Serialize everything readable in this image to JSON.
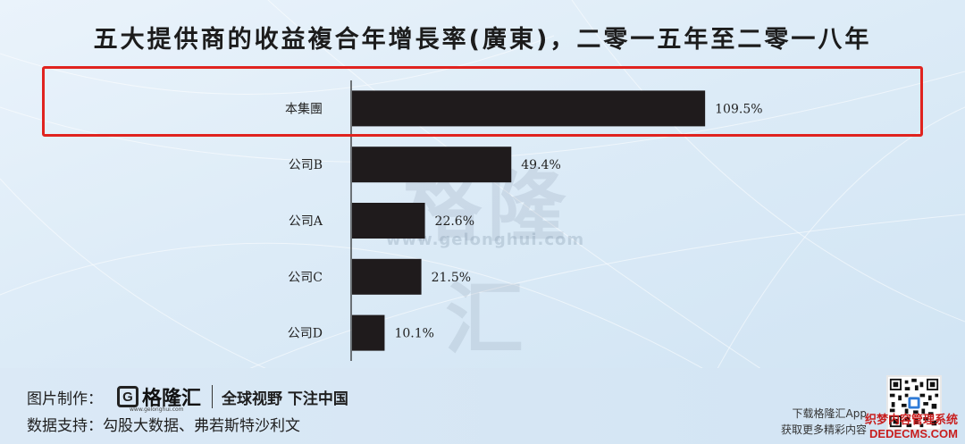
{
  "chart_data": {
    "type": "bar",
    "orientation": "horizontal",
    "title": "五大提供商的收益複合年增長率(廣東)，二零一五年至二零一八年",
    "categories": [
      "本集團",
      "公司B",
      "公司A",
      "公司C",
      "公司D"
    ],
    "values": [
      109.5,
      49.4,
      22.6,
      21.5,
      10.1
    ],
    "value_labels": [
      "109.5%",
      "49.4%",
      "22.6%",
      "21.5%",
      "10.1%"
    ],
    "xlim": [
      0,
      115
    ],
    "highlighted_category": "本集團",
    "bar_color": "#1f1b1c",
    "highlight_color": "#e0231f"
  },
  "watermark": {
    "text": "格隆汇",
    "url": "www.gelonghui.com"
  },
  "footer": {
    "made_by_label": "图片制作：",
    "brand_name": "格隆汇",
    "brand_letter": "G",
    "brand_url": "www.gelonghui.com",
    "slogan": "全球视野 下注中国",
    "data_support_label": "数据支持：",
    "data_support_value": "勾股大数据、弗若斯特沙利文",
    "app_line1": "下载格隆汇App",
    "app_line2": "获取更多精彩内容",
    "site_mark_line1": "织梦内容管理系统",
    "site_mark_line2": "DEDECMS.COM"
  }
}
